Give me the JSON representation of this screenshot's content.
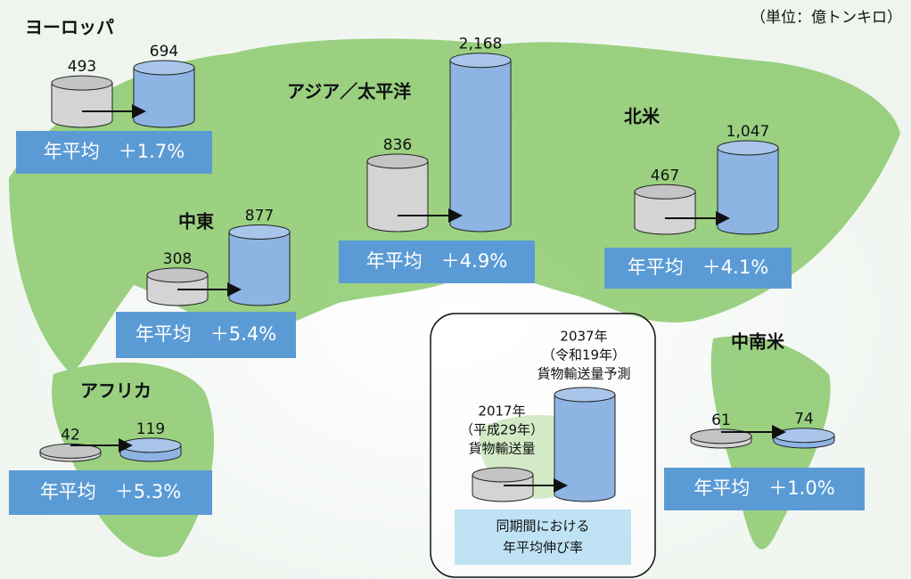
{
  "unit": "（単位：億トンキロ）",
  "regions": [
    {
      "name": "ヨーロッパ",
      "values": [
        493,
        694
      ],
      "value_labels": [
        "493",
        "694"
      ],
      "growth": "年平均　＋1.7%"
    },
    {
      "name": "アジア／太平洋",
      "values": [
        836,
        2168
      ],
      "value_labels": [
        "836",
        "2,168"
      ],
      "growth": "年平均　＋4.9%"
    },
    {
      "name": "北米",
      "values": [
        467,
        1047
      ],
      "value_labels": [
        "467",
        "1,047"
      ],
      "growth": "年平均　＋4.1%"
    },
    {
      "name": "中東",
      "values": [
        308,
        877
      ],
      "value_labels": [
        "308",
        "877"
      ],
      "growth": "年平均　＋5.4%"
    },
    {
      "name": "アフリカ",
      "values": [
        42,
        119
      ],
      "value_labels": [
        "42",
        "119"
      ],
      "growth": "年平均　＋5.3%"
    },
    {
      "name": "中南米",
      "values": [
        61,
        74
      ],
      "value_labels": [
        "61",
        "74"
      ],
      "growth": "年平均　＋1.0%"
    }
  ],
  "legend": {
    "forecast": [
      "2037年",
      "（令和19年）",
      "貨物輸送量予測"
    ],
    "actual": [
      "2017年",
      "（平成29年）",
      "貨物輸送量"
    ],
    "growth": [
      "同期間における",
      "年平均伸び率"
    ]
  }
}
